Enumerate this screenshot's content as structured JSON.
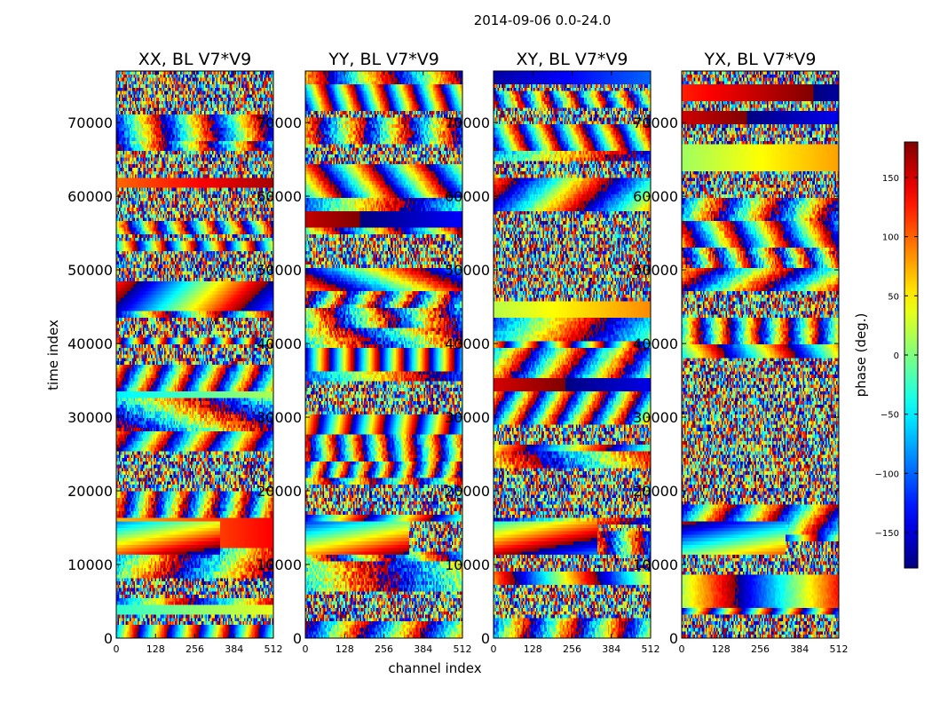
{
  "figure_title": "2014-09-06 0.0-24.0",
  "chart_data": {
    "type": "heatmap",
    "title": "2014-09-06 0.0-24.0",
    "xlabel": "channel index",
    "ylabel": "time index",
    "xlim": [
      0,
      512
    ],
    "ylim": [
      0,
      77000
    ],
    "x_ticks": [
      0,
      128,
      256,
      384,
      512
    ],
    "y_ticks": [
      0,
      10000,
      20000,
      30000,
      40000,
      50000,
      60000,
      70000
    ],
    "colormap": "jet",
    "panels": [
      {
        "title": "XX, BL V7*V9",
        "seed": 11
      },
      {
        "title": "YY, BL V7*V9",
        "seed": 23
      },
      {
        "title": "XY, BL V7*V9",
        "seed": 37
      },
      {
        "title": "YX, BL V7*V9",
        "seed": 53
      }
    ],
    "colorbar": {
      "label": "phase (deg.)",
      "range": [
        -180,
        180
      ],
      "ticks": [
        -150,
        -100,
        -50,
        0,
        50,
        100,
        150
      ]
    }
  }
}
